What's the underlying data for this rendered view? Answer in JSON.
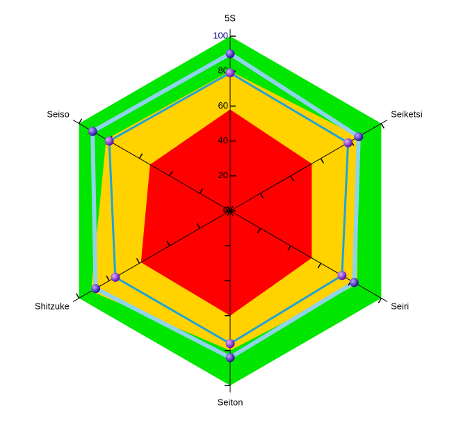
{
  "chart_data": {
    "type": "radar",
    "categories": [
      "5S",
      "Seiketsi",
      "Seiri",
      "Seiton",
      "Shitzuke",
      "Seiso"
    ],
    "ylim": [
      0,
      100
    ],
    "yticks": [
      0,
      20,
      40,
      60,
      80,
      100
    ],
    "background_color": "#00e600",
    "series": [
      {
        "color": "#ffd200",
        "fill": true,
        "values": [
          80,
          85,
          84,
          80,
          92,
          82
        ]
      },
      {
        "color": "#ff0000",
        "fill": true,
        "values": [
          58,
          54,
          54,
          60,
          59,
          53
        ]
      },
      {
        "color": "#8fd3ea",
        "marker_color": "#3a18c8",
        "fill": false,
        "values": [
          90,
          85,
          82,
          84,
          89,
          91
        ]
      },
      {
        "color": "#1fa3d6",
        "marker_color": "#7a2ad0",
        "fill": false,
        "values": [
          79,
          78,
          74,
          76,
          76,
          80
        ]
      }
    ]
  }
}
